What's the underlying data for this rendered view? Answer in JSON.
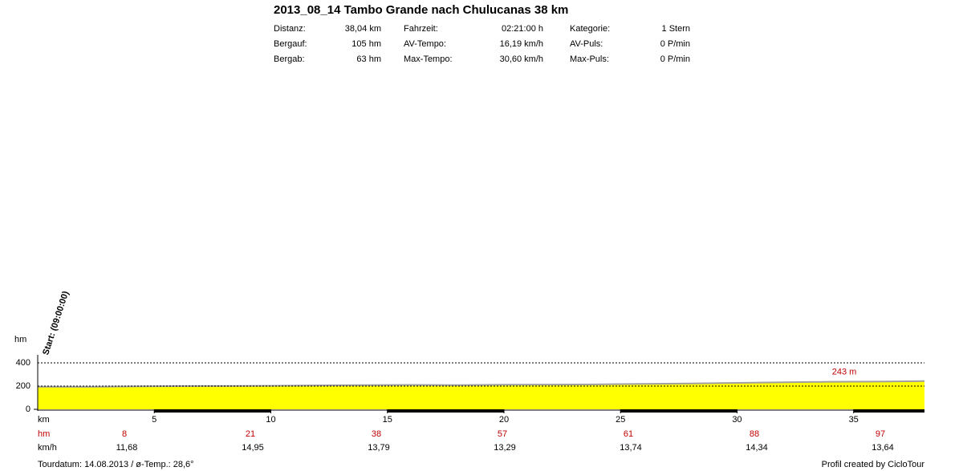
{
  "header": {
    "title": "2013_08_14 Tambo Grande nach Chulucanas 38 km",
    "stats": [
      [
        "Distanz:",
        "38,04 km",
        "Fahrzeit:",
        "02:21:00 h",
        "Kategorie:",
        "1 Stern"
      ],
      [
        "Bergauf:",
        "105 hm",
        "AV-Tempo:",
        "16,19 km/h",
        "AV-Puls:",
        "0 P/min"
      ],
      [
        "Bergab:",
        "63 hm",
        "Max-Tempo:",
        "30,60 km/h",
        "Max-Puls:",
        "0 P/min"
      ]
    ]
  },
  "chart_data": {
    "type": "area",
    "y_label": "hm",
    "x_label": "km",
    "start_label": "Start: (09:00:00)",
    "max_label": "243 m",
    "x": [
      0,
      2,
      4,
      6,
      8,
      10,
      12,
      14,
      16,
      18,
      20,
      22,
      24,
      26,
      28,
      30,
      32,
      34,
      36,
      38.04
    ],
    "values": [
      195,
      194,
      197,
      200,
      201,
      203,
      206,
      209,
      210,
      209,
      212,
      213,
      215,
      219,
      222,
      228,
      233,
      237,
      239,
      243
    ],
    "color": "#ffff00",
    "line_color": "#a0a0a0",
    "xlim": [
      0,
      38.04
    ],
    "xticks": [
      5,
      10,
      15,
      20,
      25,
      30,
      35
    ],
    "ylim": [
      0,
      400
    ],
    "yticks": [
      0,
      200,
      400
    ],
    "grid": true
  },
  "segments": {
    "hm_label": "hm",
    "hm": [
      8,
      21,
      38,
      57,
      61,
      88,
      97
    ],
    "kmh_label": "km/h",
    "kmh": [
      "11,68",
      "14,95",
      "13,79",
      "13,29",
      "13,74",
      "14,34",
      "13,64"
    ]
  },
  "footer": {
    "left": "Tourdatum: 14.08.2013  /  ø-Temp.: 28,6°",
    "right": "Profil created by CicloTour"
  }
}
